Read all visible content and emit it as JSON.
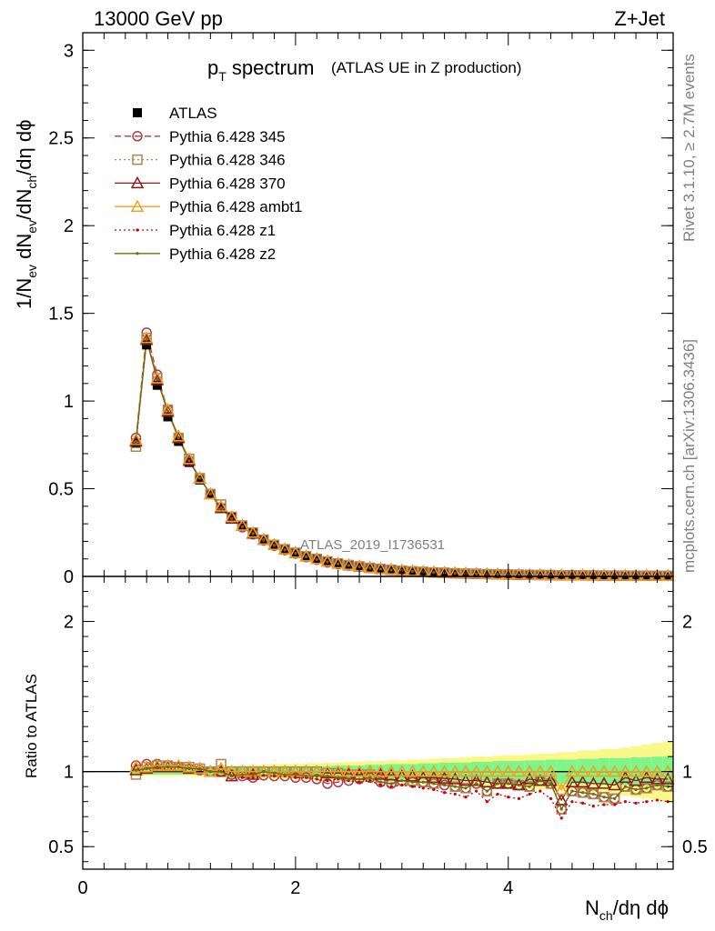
{
  "header": {
    "energy_label": "13000 GeV pp",
    "process_label": "Z+Jet",
    "side_rivet": "Rivet 3.1.10, ≥ 2.7M events",
    "side_mcplots": "mcplots.cern.ch [arXiv:1306.3436]",
    "analysis_id": "ATLAS_2019_I1736531"
  },
  "colors": {
    "data": "#000000",
    "p345": "#b03a48",
    "p346": "#a8864f",
    "p370": "#8b1a1a",
    "ambt1": "#f0a020",
    "z1": "#cc0000",
    "z2": "#6b6b10",
    "band_inner": "#7ef58a",
    "band_outer": "#faf887"
  },
  "chart_data": [
    {
      "type": "line",
      "title_main": "p",
      "title_sub": "T",
      "title_rest": " spectrum",
      "title_paren": "(ATLAS UE in Z production)",
      "ylabel": "1/N_ev dN_ev/dN_ch/dη dϕ",
      "xlim": [
        0,
        5.55
      ],
      "ylim": [
        0,
        3.1
      ],
      "ytick_labels": [
        "0",
        "0.5",
        "1",
        "1.5",
        "2",
        "2.5",
        "3"
      ],
      "ytick_values": [
        0,
        0.5,
        1,
        1.5,
        2,
        2.5,
        3
      ],
      "legend_position": "top-left",
      "x": [
        0.5,
        0.6,
        0.7,
        0.8,
        0.9,
        1.0,
        1.1,
        1.2,
        1.3,
        1.4,
        1.5,
        1.6,
        1.7,
        1.8,
        1.9,
        2.0,
        2.1,
        2.2,
        2.3,
        2.4,
        2.5,
        2.6,
        2.7,
        2.8,
        2.9,
        3.0,
        3.1,
        3.2,
        3.3,
        3.4,
        3.5,
        3.6,
        3.7,
        3.8,
        3.9,
        4.0,
        4.1,
        4.2,
        4.3,
        4.4,
        4.5,
        4.6,
        4.7,
        4.8,
        4.9,
        5.0,
        5.1,
        5.2,
        5.3,
        5.4,
        5.5
      ],
      "series": [
        {
          "name": "ATLAS",
          "key": "data",
          "marker": "square",
          "values": [
            0.76,
            1.32,
            1.09,
            0.91,
            0.77,
            0.65,
            0.55,
            0.47,
            0.39,
            0.34,
            0.29,
            0.25,
            0.21,
            0.18,
            0.155,
            0.135,
            0.115,
            0.1,
            0.087,
            0.075,
            0.066,
            0.058,
            0.05,
            0.045,
            0.04,
            0.035,
            0.031,
            0.028,
            0.025,
            0.022,
            0.02,
            0.018,
            0.016,
            0.015,
            0.013,
            0.012,
            0.011,
            0.01,
            0.009,
            0.0085,
            0.008,
            0.0075,
            0.007,
            0.0065,
            0.006,
            0.0055,
            0.005,
            0.0048,
            0.0045,
            0.0042,
            0.004
          ]
        },
        {
          "name": "Pythia 6.428 345",
          "key": "p345",
          "marker": "circle",
          "dash": "7,4",
          "values": [
            0.79,
            1.39,
            1.15,
            0.95,
            0.79,
            0.66,
            0.56,
            0.47,
            0.39,
            0.33,
            0.28,
            0.24,
            0.205,
            0.175,
            0.15,
            0.13,
            0.11,
            0.095,
            0.08,
            0.07,
            0.062,
            0.055,
            0.048,
            0.042,
            0.037,
            0.033,
            0.029,
            0.026,
            0.023,
            0.02,
            0.018,
            0.016,
            0.015,
            0.013,
            0.012,
            0.011,
            0.01,
            0.009,
            0.0085,
            0.0078,
            0.007,
            0.0065,
            0.006,
            0.0055,
            0.005,
            0.0045,
            0.0045,
            0.0042,
            0.004,
            0.0038,
            0.0036
          ]
        },
        {
          "name": "Pythia 6.428 346",
          "key": "p346",
          "marker": "square_open",
          "dash": "2,3",
          "values": [
            0.74,
            1.36,
            1.13,
            0.95,
            0.79,
            0.67,
            0.56,
            0.47,
            0.41,
            0.34,
            0.29,
            0.25,
            0.21,
            0.18,
            0.155,
            0.135,
            0.115,
            0.1,
            0.086,
            0.074,
            0.065,
            0.057,
            0.049,
            0.043,
            0.038,
            0.033,
            0.029,
            0.026,
            0.023,
            0.021,
            0.018,
            0.016,
            0.015,
            0.013,
            0.012,
            0.011,
            0.01,
            0.009,
            0.0085,
            0.0078,
            0.006,
            0.0065,
            0.006,
            0.0055,
            0.005,
            0.0045,
            0.0045,
            0.0042,
            0.004,
            0.0038,
            0.0036
          ]
        },
        {
          "name": "Pythia 6.428 370",
          "key": "p370",
          "marker": "triangle_open",
          "values": [
            0.77,
            1.35,
            1.12,
            0.94,
            0.79,
            0.66,
            0.56,
            0.47,
            0.39,
            0.33,
            0.29,
            0.245,
            0.21,
            0.18,
            0.155,
            0.135,
            0.115,
            0.1,
            0.086,
            0.074,
            0.065,
            0.057,
            0.05,
            0.044,
            0.039,
            0.034,
            0.03,
            0.027,
            0.024,
            0.021,
            0.019,
            0.017,
            0.015,
            0.014,
            0.012,
            0.011,
            0.01,
            0.0095,
            0.0085,
            0.008,
            0.0065,
            0.007,
            0.0065,
            0.006,
            0.0055,
            0.005,
            0.0048,
            0.0045,
            0.0043,
            0.004,
            0.0038
          ]
        },
        {
          "name": "Pythia 6.428 ambt1",
          "key": "ambt1",
          "marker": "triangle_open",
          "values": [
            0.78,
            1.36,
            1.13,
            0.95,
            0.8,
            0.67,
            0.56,
            0.47,
            0.4,
            0.34,
            0.29,
            0.25,
            0.21,
            0.18,
            0.155,
            0.135,
            0.115,
            0.1,
            0.087,
            0.075,
            0.066,
            0.058,
            0.05,
            0.045,
            0.04,
            0.035,
            0.031,
            0.028,
            0.025,
            0.022,
            0.02,
            0.018,
            0.016,
            0.015,
            0.013,
            0.012,
            0.011,
            0.01,
            0.009,
            0.0085,
            0.007,
            0.0075,
            0.007,
            0.0065,
            0.006,
            0.0055,
            0.005,
            0.0048,
            0.0045,
            0.0042,
            0.004
          ]
        },
        {
          "name": "Pythia 6.428 z1",
          "key": "z1",
          "marker": "dot",
          "dash": "2,3",
          "values": [
            0.77,
            1.35,
            1.12,
            0.94,
            0.79,
            0.66,
            0.56,
            0.47,
            0.39,
            0.33,
            0.28,
            0.24,
            0.205,
            0.175,
            0.15,
            0.13,
            0.11,
            0.095,
            0.082,
            0.071,
            0.062,
            0.054,
            0.047,
            0.041,
            0.036,
            0.032,
            0.028,
            0.025,
            0.022,
            0.019,
            0.017,
            0.015,
            0.014,
            0.012,
            0.011,
            0.01,
            0.009,
            0.0085,
            0.0078,
            0.007,
            0.0055,
            0.006,
            0.0055,
            0.005,
            0.0047,
            0.0043,
            0.004,
            0.0038,
            0.0036,
            0.0034,
            0.0032
          ]
        },
        {
          "name": "Pythia 6.428 z2",
          "key": "z2",
          "marker": "dot",
          "values": [
            0.77,
            1.35,
            1.12,
            0.94,
            0.79,
            0.66,
            0.56,
            0.47,
            0.39,
            0.33,
            0.285,
            0.245,
            0.21,
            0.178,
            0.152,
            0.132,
            0.112,
            0.097,
            0.084,
            0.072,
            0.063,
            0.055,
            0.048,
            0.042,
            0.037,
            0.033,
            0.029,
            0.026,
            0.023,
            0.02,
            0.018,
            0.016,
            0.015,
            0.013,
            0.012,
            0.011,
            0.01,
            0.009,
            0.0082,
            0.0075,
            0.006,
            0.0065,
            0.006,
            0.0055,
            0.005,
            0.0046,
            0.0043,
            0.004,
            0.0038,
            0.0036,
            0.0034
          ]
        }
      ]
    },
    {
      "type": "line",
      "ylabel": "Ratio to ATLAS",
      "xlabel": "N_ch/dη dϕ",
      "xlim": [
        0,
        5.55
      ],
      "ylim": [
        0.35,
        2.3
      ],
      "ytick_labels": [
        "0.5",
        "1",
        "2"
      ],
      "ytick_values": [
        0.5,
        1,
        2
      ],
      "xtick_labels": [
        "0",
        "2",
        "4"
      ],
      "xtick_values": [
        0,
        2,
        4
      ],
      "reference_line": 1,
      "band_inner_halfwidth": [
        0.02,
        0.02,
        0.02,
        0.02,
        0.02,
        0.02,
        0.02,
        0.02,
        0.025,
        0.025,
        0.025,
        0.025,
        0.03,
        0.03,
        0.03,
        0.03,
        0.035,
        0.035,
        0.035,
        0.04,
        0.04,
        0.04,
        0.045,
        0.045,
        0.05,
        0.05,
        0.05,
        0.055,
        0.055,
        0.06,
        0.06,
        0.06,
        0.065,
        0.065,
        0.07,
        0.07,
        0.07,
        0.075,
        0.075,
        0.08,
        0.08,
        0.08,
        0.085,
        0.085,
        0.09,
        0.09,
        0.09,
        0.095,
        0.095,
        0.1,
        0.1
      ],
      "band_outer_halfwidth": [
        0.03,
        0.03,
        0.03,
        0.03,
        0.03,
        0.03,
        0.035,
        0.035,
        0.04,
        0.04,
        0.04,
        0.045,
        0.045,
        0.05,
        0.05,
        0.05,
        0.055,
        0.055,
        0.06,
        0.06,
        0.065,
        0.065,
        0.07,
        0.07,
        0.075,
        0.075,
        0.08,
        0.08,
        0.085,
        0.09,
        0.09,
        0.095,
        0.1,
        0.1,
        0.105,
        0.11,
        0.11,
        0.115,
        0.12,
        0.12,
        0.13,
        0.13,
        0.14,
        0.14,
        0.15,
        0.15,
        0.16,
        0.17,
        0.18,
        0.19,
        0.2
      ],
      "series": [
        {
          "key": "p345",
          "values": [
            1.04,
            1.05,
            1.05,
            1.04,
            1.03,
            1.02,
            1.01,
            1.0,
            1.0,
            0.98,
            0.97,
            0.96,
            0.975,
            0.97,
            0.97,
            0.96,
            0.96,
            0.95,
            0.92,
            0.93,
            0.94,
            0.95,
            0.96,
            0.93,
            0.92,
            0.94,
            0.93,
            0.93,
            0.92,
            0.91,
            0.9,
            0.89,
            0.92,
            0.87,
            0.92,
            0.92,
            0.91,
            0.9,
            0.94,
            0.92,
            0.75,
            0.87,
            0.86,
            0.85,
            0.83,
            0.82,
            0.9,
            0.88,
            0.89,
            0.91,
            0.9
          ]
        },
        {
          "key": "p346",
          "values": [
            0.98,
            1.03,
            1.04,
            1.04,
            1.03,
            1.03,
            1.02,
            1.0,
            1.05,
            1.0,
            1.0,
            1.0,
            1.0,
            1.0,
            1.0,
            1.0,
            1.0,
            1.0,
            0.99,
            0.99,
            0.98,
            0.98,
            0.98,
            0.96,
            0.95,
            0.94,
            0.94,
            0.93,
            0.92,
            0.95,
            0.9,
            0.89,
            0.94,
            0.87,
            0.92,
            0.92,
            0.91,
            0.9,
            0.94,
            0.92,
            0.75,
            0.87,
            0.86,
            0.85,
            0.83,
            0.82,
            0.9,
            0.88,
            0.89,
            0.91,
            0.9
          ]
        },
        {
          "key": "p370",
          "values": [
            1.01,
            1.02,
            1.03,
            1.03,
            1.03,
            1.02,
            1.02,
            1.0,
            1.0,
            0.97,
            1.0,
            0.98,
            1.0,
            1.0,
            1.0,
            1.0,
            1.0,
            1.0,
            0.99,
            0.99,
            0.985,
            0.98,
            1.0,
            0.98,
            0.975,
            0.97,
            0.97,
            0.96,
            0.96,
            0.955,
            0.95,
            0.94,
            0.94,
            0.93,
            0.92,
            0.92,
            0.91,
            0.95,
            0.94,
            0.94,
            0.81,
            0.93,
            0.93,
            0.92,
            0.92,
            0.91,
            0.96,
            0.94,
            0.96,
            0.95,
            0.95
          ]
        },
        {
          "key": "ambt1",
          "values": [
            1.03,
            1.03,
            1.04,
            1.04,
            1.04,
            1.03,
            1.02,
            1.0,
            1.02,
            1.0,
            1.0,
            1.0,
            1.0,
            1.0,
            1.0,
            1.0,
            1.0,
            1.0,
            1.0,
            1.0,
            1.0,
            1.0,
            1.0,
            1.0,
            1.0,
            1.0,
            1.0,
            1.0,
            1.0,
            1.0,
            1.0,
            1.0,
            1.0,
            1.0,
            1.0,
            1.0,
            1.0,
            1.0,
            1.0,
            1.0,
            0.88,
            1.0,
            1.0,
            1.0,
            1.0,
            1.0,
            1.0,
            1.0,
            1.0,
            1.0,
            1.0
          ]
        },
        {
          "key": "z1",
          "values": [
            1.01,
            1.02,
            1.03,
            1.03,
            1.03,
            1.02,
            1.02,
            1.0,
            1.0,
            0.97,
            0.96,
            0.96,
            0.975,
            0.97,
            0.97,
            0.96,
            0.96,
            0.95,
            0.94,
            0.95,
            0.94,
            0.93,
            0.94,
            0.91,
            0.9,
            0.91,
            0.9,
            0.89,
            0.88,
            0.86,
            0.85,
            0.83,
            0.87,
            0.8,
            0.85,
            0.83,
            0.82,
            0.85,
            0.87,
            0.82,
            0.69,
            0.8,
            0.79,
            0.77,
            0.78,
            0.78,
            0.8,
            0.79,
            0.8,
            0.81,
            0.8
          ]
        },
        {
          "key": "z2",
          "values": [
            1.01,
            1.02,
            1.03,
            1.03,
            1.03,
            1.02,
            1.02,
            1.0,
            1.0,
            0.97,
            0.98,
            0.98,
            1.0,
            0.99,
            0.98,
            0.98,
            0.97,
            0.97,
            0.97,
            0.96,
            0.95,
            0.95,
            0.96,
            0.93,
            0.92,
            0.94,
            0.93,
            0.93,
            0.92,
            0.91,
            0.9,
            0.89,
            0.92,
            0.87,
            0.92,
            0.92,
            0.91,
            0.9,
            0.94,
            0.92,
            0.75,
            0.87,
            0.86,
            0.85,
            0.83,
            0.82,
            0.9,
            0.88,
            0.89,
            0.91,
            0.9
          ]
        }
      ]
    }
  ]
}
